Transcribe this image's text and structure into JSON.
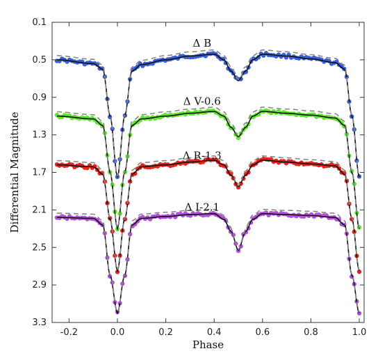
{
  "chart_data": {
    "type": "scatter",
    "xlabel": "Phase",
    "ylabel": "Differential Magnitude",
    "xlim": [
      -0.27,
      1.02
    ],
    "ylim": [
      3.3,
      0.1
    ],
    "y_inverted": true,
    "x_ticks": [
      "-0.2",
      "0.0",
      "0.2",
      "0.4",
      "0.6",
      "0.8",
      "1.0"
    ],
    "x_tick_values": [
      -0.2,
      0.0,
      0.2,
      0.4,
      0.6,
      0.8,
      1.0
    ],
    "y_ticks": [
      "0.1",
      "0.5",
      "0.9",
      "1.3",
      "1.7",
      "2.1",
      "2.5",
      "2.9",
      "3.3"
    ],
    "y_tick_values": [
      0.1,
      0.5,
      0.9,
      1.3,
      1.7,
      2.1,
      2.5,
      2.9,
      3.3
    ],
    "series": [
      {
        "name": "Δ B",
        "label_phase": 0.35,
        "label_mag": 0.36,
        "color": "#3a5fd9",
        "x": [
          -0.25,
          -0.1,
          -0.06,
          -0.03,
          0.0,
          0.03,
          0.06,
          0.1,
          0.2,
          0.3,
          0.4,
          0.44,
          0.47,
          0.5,
          0.53,
          0.56,
          0.6,
          0.7,
          0.8,
          0.9,
          0.94,
          0.97,
          1.0
        ],
        "y": [
          0.5,
          0.54,
          0.6,
          1.1,
          1.75,
          1.1,
          0.62,
          0.55,
          0.5,
          0.46,
          0.44,
          0.5,
          0.62,
          0.72,
          0.62,
          0.5,
          0.44,
          0.46,
          0.49,
          0.53,
          0.6,
          1.1,
          1.75
        ]
      },
      {
        "name": "Δ V-0.6",
        "label_phase": 0.35,
        "label_mag": 0.98,
        "color": "#5ee82c",
        "x": [
          -0.25,
          -0.1,
          -0.06,
          -0.03,
          0.0,
          0.03,
          0.06,
          0.1,
          0.2,
          0.3,
          0.4,
          0.44,
          0.47,
          0.5,
          0.53,
          0.56,
          0.6,
          0.7,
          0.8,
          0.9,
          0.94,
          0.97,
          1.0
        ],
        "y": [
          1.1,
          1.13,
          1.2,
          1.7,
          2.3,
          1.7,
          1.2,
          1.13,
          1.1,
          1.07,
          1.05,
          1.1,
          1.22,
          1.32,
          1.22,
          1.1,
          1.05,
          1.07,
          1.09,
          1.12,
          1.2,
          1.7,
          2.3
        ]
      },
      {
        "name": "Δ R-1.3",
        "label_phase": 0.35,
        "label_mag": 1.56,
        "color": "#e8231c",
        "x": [
          -0.25,
          -0.1,
          -0.06,
          -0.03,
          0.0,
          0.03,
          0.06,
          0.1,
          0.2,
          0.3,
          0.4,
          0.44,
          0.47,
          0.5,
          0.53,
          0.56,
          0.6,
          0.7,
          0.8,
          0.9,
          0.94,
          0.97,
          1.0
        ],
        "y": [
          1.62,
          1.64,
          1.72,
          2.2,
          2.75,
          2.2,
          1.72,
          1.64,
          1.62,
          1.59,
          1.57,
          1.62,
          1.73,
          1.85,
          1.73,
          1.62,
          1.57,
          1.59,
          1.61,
          1.63,
          1.72,
          2.2,
          2.75
        ]
      },
      {
        "name": "Δ I-2.1",
        "label_phase": 0.35,
        "label_mag": 2.11,
        "color": "#b54fe0",
        "x": [
          -0.25,
          -0.1,
          -0.06,
          -0.03,
          0.0,
          0.03,
          0.06,
          0.1,
          0.2,
          0.3,
          0.4,
          0.44,
          0.47,
          0.5,
          0.53,
          0.56,
          0.6,
          0.7,
          0.8,
          0.9,
          0.94,
          0.97,
          1.0
        ],
        "y": [
          2.18,
          2.19,
          2.26,
          2.8,
          3.2,
          2.8,
          2.26,
          2.19,
          2.17,
          2.15,
          2.14,
          2.2,
          2.33,
          2.53,
          2.33,
          2.2,
          2.14,
          2.15,
          2.16,
          2.18,
          2.26,
          2.8,
          3.2
        ]
      }
    ]
  }
}
